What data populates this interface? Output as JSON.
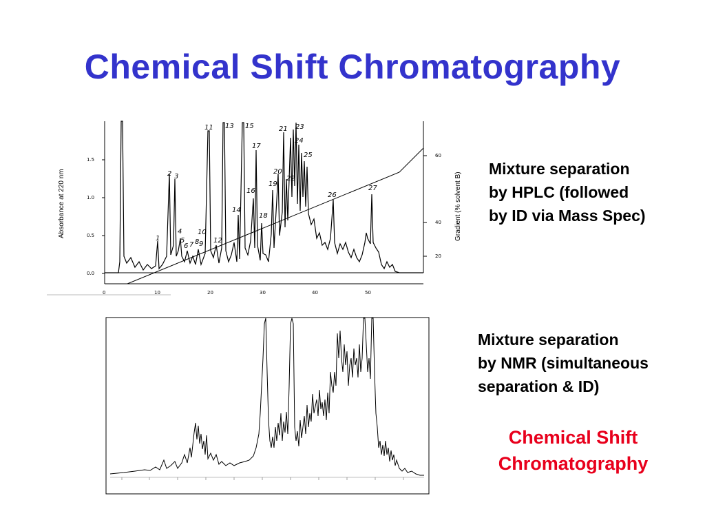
{
  "slide": {
    "title": "Chemical Shift Chromatography",
    "hplc_caption": [
      "Mixture separation",
      "by HPLC (followed",
      "by ID via Mass Spec)"
    ],
    "nmr_caption": [
      "Mixture separation",
      "by NMR (simultaneous",
      "separation & ID)"
    ],
    "highlight": [
      "Chemical Shift",
      "Chromatography"
    ]
  },
  "hplc": {
    "ylabel_left": "Absorbance at 220 nm",
    "ylabel_right": "Gradient  (% solvent B)",
    "y_ticks_left": [
      "0.0",
      "0.5",
      "1.0",
      "1.5"
    ],
    "y_ticks_right": [
      "20",
      "40",
      "60"
    ],
    "x_ticks": [
      "0",
      "10",
      "20",
      "30",
      "40",
      "50"
    ],
    "peaks": [
      "1",
      "2",
      "3",
      "4",
      "5",
      "6",
      "7",
      "8",
      "9",
      "10",
      "11",
      "12",
      "13",
      "14",
      "15",
      "16",
      "17",
      "18",
      "19",
      "20",
      "21",
      "22",
      "23",
      "24",
      "25",
      "26",
      "27"
    ]
  },
  "colors": {
    "title": "#3333cc",
    "highlight": "#e8001c"
  }
}
